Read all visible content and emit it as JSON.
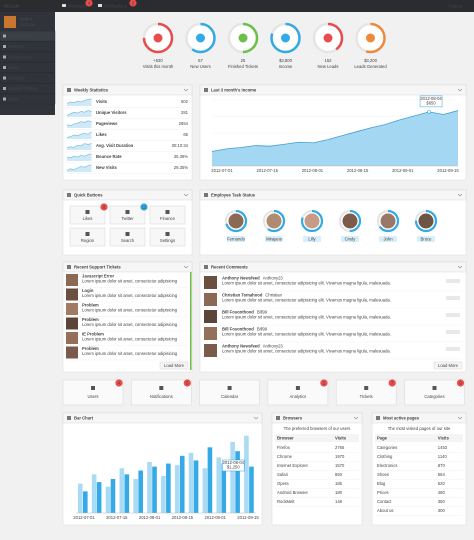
{
  "topbar": {
    "logo": "REALM",
    "messages": "Messages",
    "messages_count": "4",
    "notifications": "Notifications",
    "notifications_count": "2",
    "logout": "Logout"
  },
  "user": {
    "name": "Odinn",
    "role": "Settings"
  },
  "menu": [
    "Dashboard",
    "Features",
    "Components",
    "Tasks",
    "Analytics",
    "Support Tickets",
    "Users"
  ],
  "stats": [
    {
      "value": "+530",
      "label": "Visits this month",
      "progress": 75,
      "color": "#e84c4c"
    },
    {
      "value": "57",
      "label": "New Users",
      "progress": 60,
      "color": "#33aae6"
    },
    {
      "value": "25",
      "label": "Finished Tickets",
      "progress": 50,
      "color": "#6cc04a"
    },
    {
      "value": "$3,800",
      "label": "Income",
      "progress": 80,
      "color": "#33aae6"
    },
    {
      "value": "152",
      "label": "New Leads",
      "progress": 40,
      "color": "#e84c4c"
    },
    {
      "value": "$3,200",
      "label": "Leads Generated",
      "progress": 55,
      "color": "#f0883a"
    }
  ],
  "weekly": {
    "title": "Weekly Statistics",
    "rows": [
      {
        "label": "Visits",
        "value": "502",
        "spark": [
          3,
          5,
          4,
          6,
          5,
          7,
          8,
          9
        ]
      },
      {
        "label": "Unique Visitors",
        "value": "281",
        "spark": [
          2,
          4,
          6,
          5,
          7,
          6,
          8,
          7
        ]
      },
      {
        "label": "Pageviews",
        "value": "2654",
        "spark": [
          4,
          3,
          5,
          6,
          8,
          7,
          9,
          8
        ]
      },
      {
        "label": "Likes",
        "value": "65",
        "spark": [
          2,
          3,
          5,
          4,
          6,
          7,
          6,
          9
        ]
      },
      {
        "label": "Avg. Visit Duration",
        "value": "00:10:34",
        "spark": [
          3,
          4,
          3,
          6,
          5,
          8,
          7,
          8
        ]
      },
      {
        "label": "Bounce Rate",
        "value": "35.38%",
        "spark": [
          5,
          4,
          6,
          5,
          7,
          6,
          8,
          9
        ]
      },
      {
        "label": "New Visits",
        "value": "29.35%",
        "spark": [
          2,
          4,
          3,
          5,
          7,
          6,
          8,
          9
        ]
      }
    ]
  },
  "income": {
    "title": "Last 3 month's income",
    "values": [
      22,
      26,
      28,
      31,
      30,
      33,
      36,
      35,
      40,
      46,
      52,
      58,
      63,
      70,
      76,
      82,
      78,
      84
    ],
    "ylim": [
      0,
      100
    ],
    "x_labels": [
      "2012-07-01",
      "2012-07-15",
      "2012-08-01",
      "2012-08-15",
      "2012-09-01",
      "2012-09-15"
    ],
    "tooltip": {
      "date": "2012-08-04",
      "value": "$650"
    }
  },
  "quick_buttons": {
    "title": "Quick Buttons",
    "buttons": [
      {
        "label": "Likes",
        "badge": "8"
      },
      {
        "label": "Twitter",
        "badge": "12"
      },
      {
        "label": "Finance"
      },
      {
        "label": "Region"
      },
      {
        "label": "Search"
      },
      {
        "label": "Settings"
      }
    ]
  },
  "employees": {
    "title": "Employee Task Status",
    "people": [
      {
        "name": "Fernando",
        "progress": 70
      },
      {
        "name": "Mirajans",
        "progress": 60
      },
      {
        "name": "Lilly",
        "progress": 80
      },
      {
        "name": "Cindy",
        "progress": 50
      },
      {
        "name": "John",
        "progress": 65
      },
      {
        "name": "Bruce",
        "progress": 75
      }
    ]
  },
  "tickets": {
    "title": "Recent Support Tickets",
    "more": "Load More",
    "items": [
      {
        "title": "Javascript Error",
        "text": "Lorem ipsum dolor sit amet, consectetur adipisicing"
      },
      {
        "title": "Login",
        "text": "Lorem ipsum dolor sit amet, consectetur adipisicing"
      },
      {
        "title": "Problem",
        "text": "Lorem ipsum dolor sit amet, consectetur adipisicing"
      },
      {
        "title": "Problem",
        "text": "Lorem ipsum dolor sit amet, consectetur adipisicing"
      },
      {
        "title": "IE Problem",
        "text": "Lorem ipsum dolor sit amet, consectetur adipisicing"
      },
      {
        "title": "Problem",
        "text": "Lorem ipsum dolor sit amet, consectetur adipisicing"
      }
    ]
  },
  "comments": {
    "title": "Recent Comments",
    "more": "Load More",
    "items": [
      {
        "name": "Anthony Newsfeed",
        "user": "Anthony23",
        "text": "Lorem ipsum dolor sit amet, consectetur adipisicing elit. Vivamus magna ligula, malesuada."
      },
      {
        "name": "Christian Tomahood",
        "user": "Christian",
        "text": "Lorem ipsum dolor sit amet, consectetur adipisicing elit. Vivamus magna ligula, malesuada."
      },
      {
        "name": "Bill Fosonthood",
        "user": "Bill99",
        "text": "Lorem ipsum dolor sit amet, consectetur adipisicing elit. Vivamus magna ligula, malesuada."
      },
      {
        "name": "Bill Fosonthood",
        "user": "Bill99",
        "text": "Lorem ipsum dolor sit amet, consectetur adipisicing elit. Vivamus magna ligula, malesuada."
      },
      {
        "name": "Anthony Newsfeed",
        "user": "Anthony23",
        "text": "Lorem ipsum dolor sit amet, consectetur adipisicing elit. Vivamus magna ligula, malesuada."
      }
    ]
  },
  "shortcuts": [
    {
      "label": "Users",
      "badge": "4"
    },
    {
      "label": "Notifications",
      "badge": "5"
    },
    {
      "label": "Calendar"
    },
    {
      "label": "Analytics",
      "badge": "2"
    },
    {
      "label": "Tickets",
      "badge": "7"
    },
    {
      "label": "Categories",
      "badge": "9"
    }
  ],
  "bar_chart": {
    "title": "Bar Chart",
    "ylim": [
      0,
      110
    ],
    "series": [
      {
        "color": "#a9dbf5",
        "values": [
          38,
          50,
          34,
          58,
          44,
          66,
          48,
          62,
          78,
          58,
          72,
          92,
          100
        ]
      },
      {
        "color": "#35aae6",
        "values": [
          28,
          40,
          44,
          50,
          55,
          60,
          64,
          74,
          68,
          85,
          64,
          80,
          60
        ]
      }
    ],
    "x_labels": [
      "2012-07-01",
      "2012-07-15",
      "2012-08-01",
      "2012-08-15",
      "2012-09-01",
      "2012-09-15"
    ],
    "tooltip": {
      "date": "2012-08-04",
      "value": "$1,250"
    }
  },
  "browsers": {
    "title": "Browsers",
    "subtitle": "The preferred browsers of our users",
    "columns": [
      "Browser",
      "Visits"
    ],
    "rows": [
      [
        "Firefox",
        2765
      ],
      [
        "Chrome",
        1970
      ],
      [
        "Internet Explorer",
        1570
      ],
      [
        "Safari",
        850
      ],
      [
        "Opera",
        185
      ],
      [
        "Android Browser",
        180
      ],
      [
        "RockMelt",
        148
      ]
    ]
  },
  "pages": {
    "title": "Most active pages",
    "subtitle": "The most visited pages of our site",
    "columns": [
      "Page",
      "Visits"
    ],
    "rows": [
      [
        "Categories",
        1453
      ],
      [
        "Clothing",
        1140
      ],
      [
        "Electronics",
        870
      ],
      [
        "Shoes",
        564
      ],
      [
        "Blog",
        520
      ],
      [
        "Prices",
        480
      ],
      [
        "Contact",
        350
      ],
      [
        "About us",
        300
      ]
    ]
  }
}
